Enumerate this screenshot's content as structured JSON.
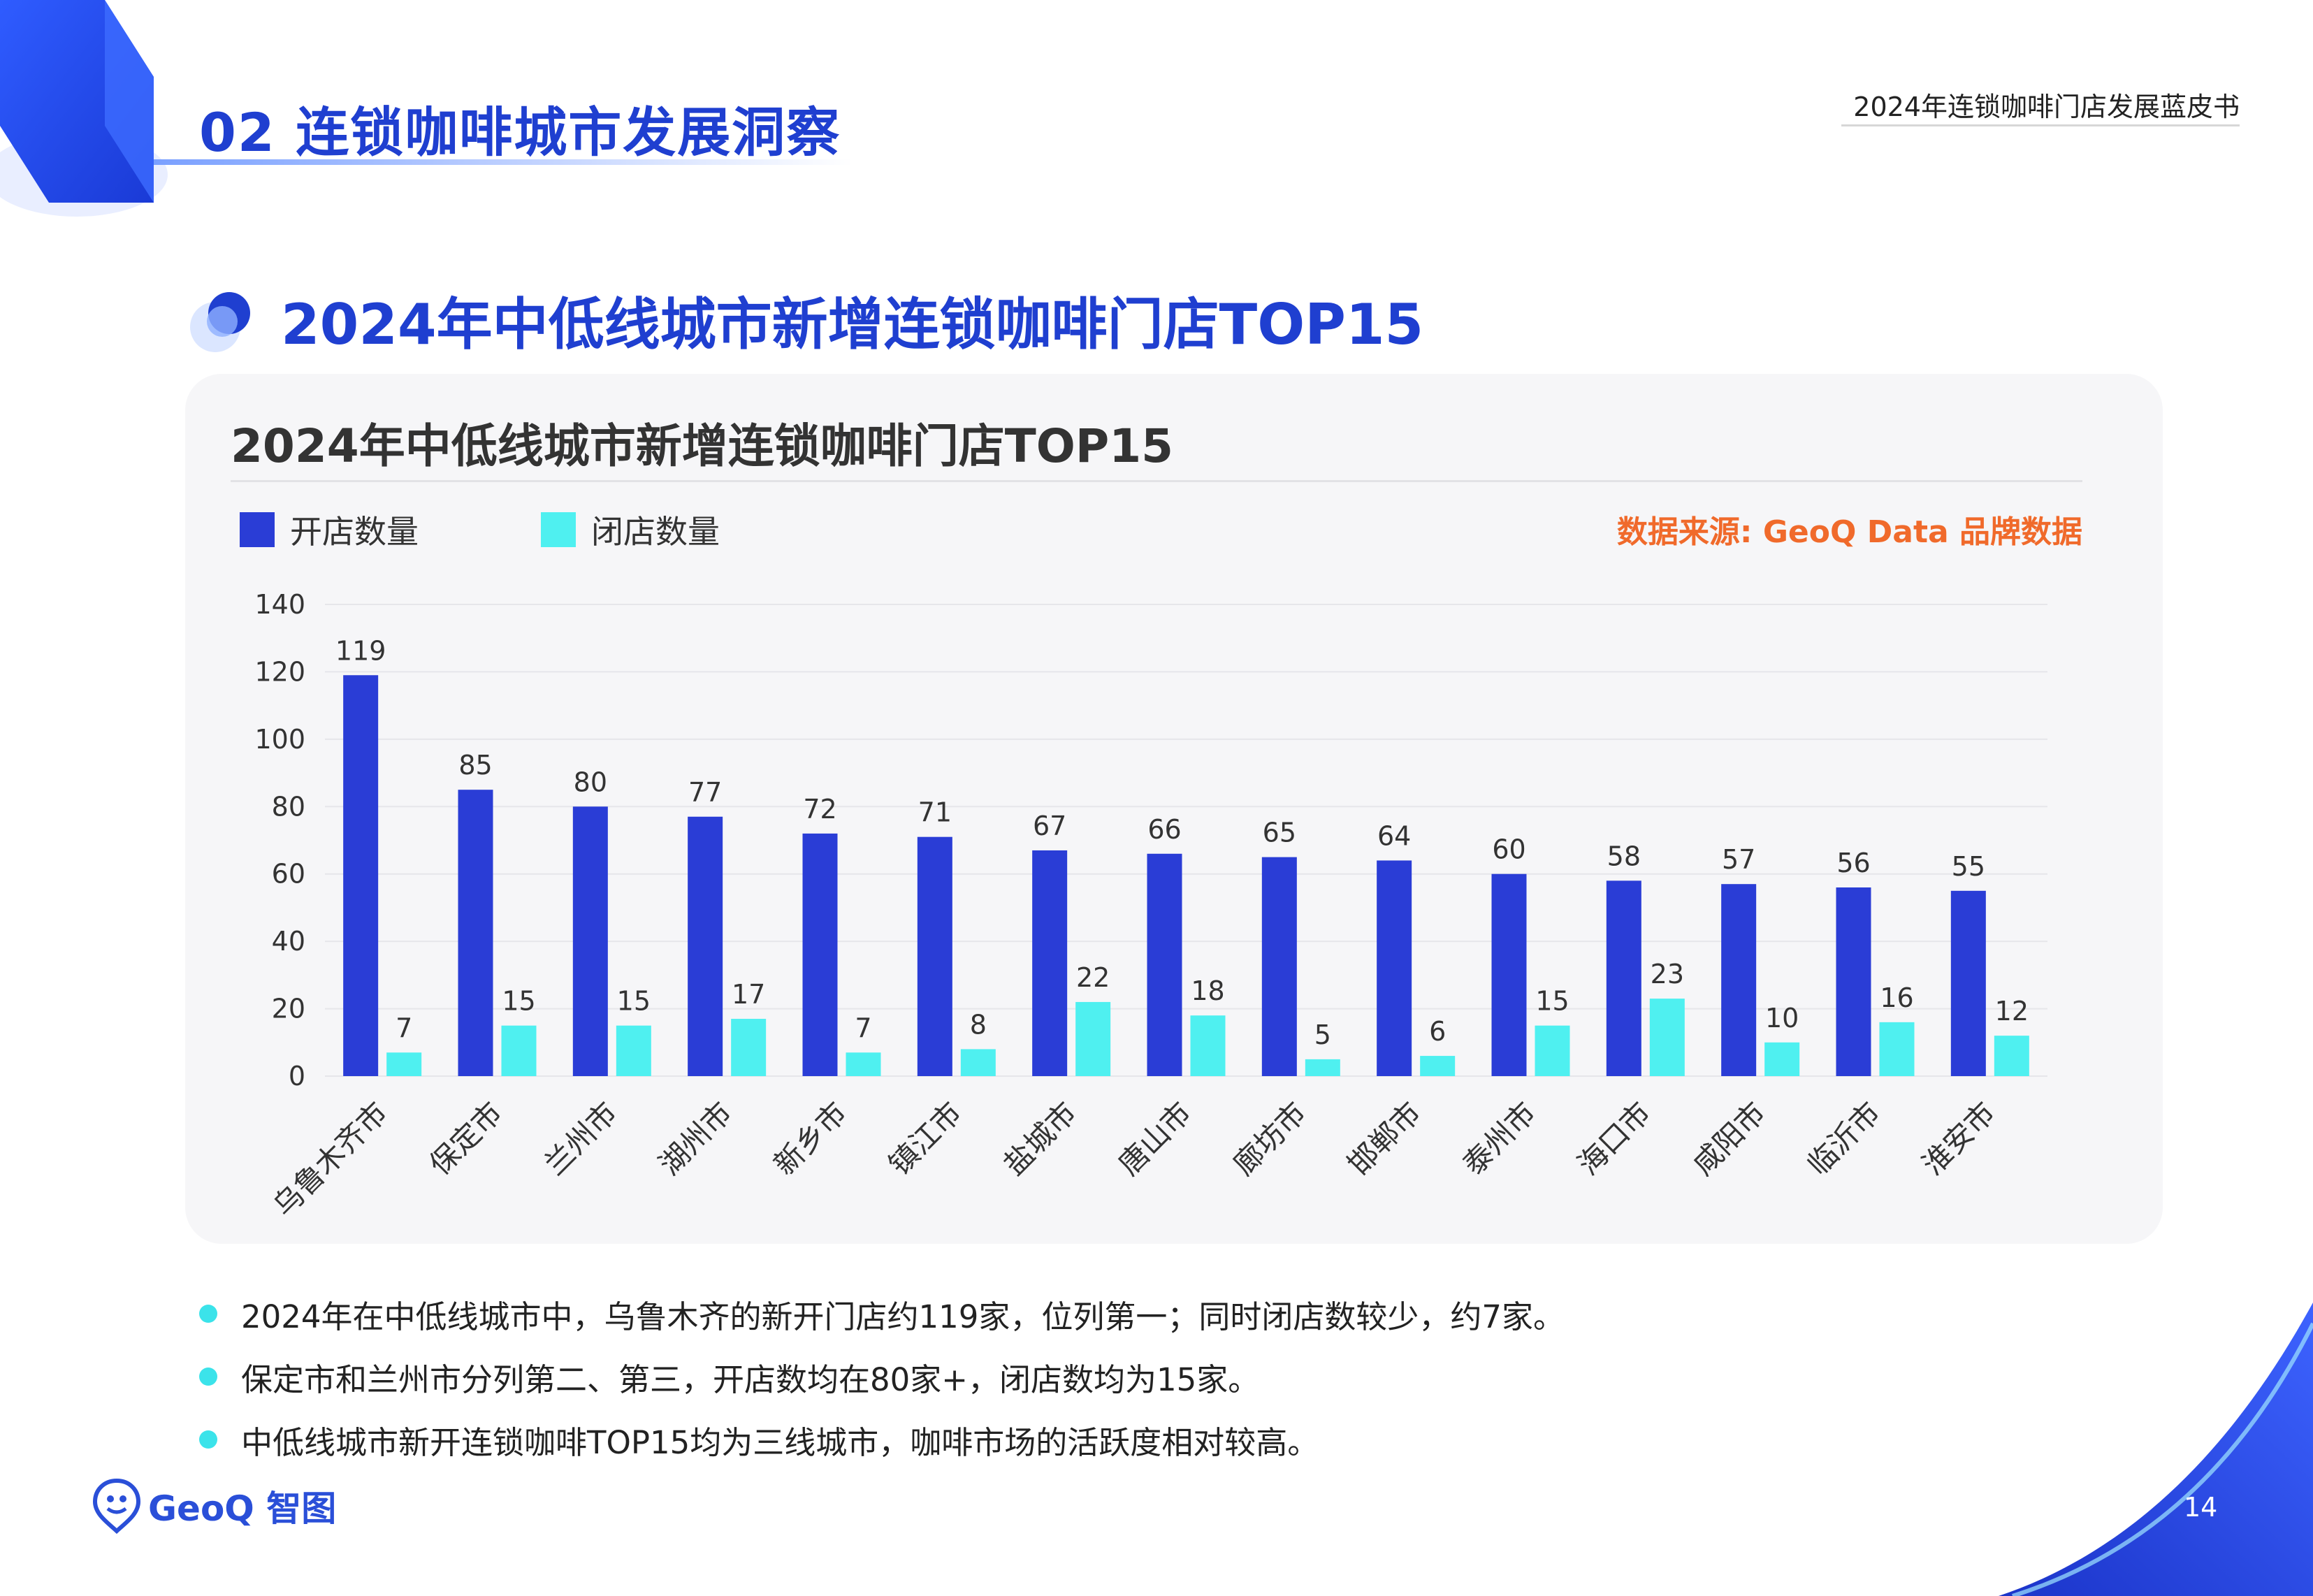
{
  "header": {
    "section_title": "02 连锁咖啡城市发展洞察",
    "report_name": "2024年连锁咖啡门店发展蓝皮书"
  },
  "subtitle": "2024年中低线城市新增连锁咖啡门店TOP15",
  "colors": {
    "open": "#2a3dd6",
    "close": "#4ff0f0",
    "accent": "#1f3fd0",
    "source": "#f06a2b"
  },
  "chart_data": {
    "type": "bar",
    "title": "2024年中低线城市新增连锁咖啡门店TOP15",
    "source": "数据来源: GeoQ Data 品牌数据",
    "categories": [
      "乌鲁木齐市",
      "保定市",
      "兰州市",
      "湖州市",
      "新乡市",
      "镇江市",
      "盐城市",
      "唐山市",
      "廊坊市",
      "邯郸市",
      "泰州市",
      "海口市",
      "咸阳市",
      "临沂市",
      "淮安市"
    ],
    "series": [
      {
        "name": "开店数量",
        "values": [
          119,
          85,
          80,
          77,
          72,
          71,
          67,
          66,
          65,
          64,
          60,
          58,
          57,
          56,
          55
        ]
      },
      {
        "name": "闭店数量",
        "values": [
          7,
          15,
          15,
          17,
          7,
          8,
          22,
          18,
          5,
          6,
          15,
          23,
          10,
          16,
          12
        ]
      }
    ],
    "ylim": [
      0,
      140
    ],
    "yticks": [
      0,
      20,
      40,
      60,
      80,
      100,
      120,
      140
    ],
    "grid": true,
    "legend": "top-left",
    "xlabel": "",
    "ylabel": ""
  },
  "notes": [
    "2024年在中低线城市中，乌鲁木齐的新开门店约119家，位列第一；同时闭店数较少，约7家。",
    "保定市和兰州市分列第二、第三，开店数均在80家+，闭店数均为15家。",
    "中低线城市新开连锁咖啡TOP15均为三线城市，咖啡市场的活跃度相对较高。"
  ],
  "footer": {
    "logo_text": "GeoQ 智图",
    "page_number": "14"
  }
}
